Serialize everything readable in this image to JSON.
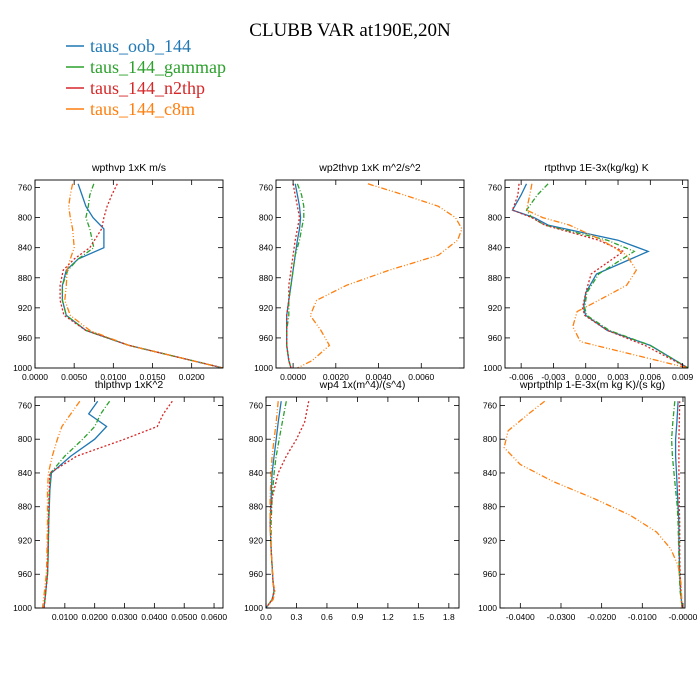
{
  "title": "CLUBB VAR at190E,20N",
  "colors": {
    "taus_oob_144": "#1f77b4",
    "taus_144_gammap": "#2ca02c",
    "taus_144_n2thp": "#d62728",
    "taus_144_c8m": "#ff7f0e"
  },
  "chart_data": [
    {
      "type": "line",
      "title": "wpthvp   1xK m/s",
      "xlim": [
        0,
        0.024
      ],
      "ylim": [
        1000,
        750
      ],
      "y_ticks": [
        760,
        800,
        840,
        880,
        920,
        960,
        1000
      ],
      "x_ticks": [
        0.0,
        0.005,
        0.01,
        0.015,
        0.02
      ],
      "x_tick_labels": [
        "0.0000",
        "0.0050",
        "0.0100",
        "0.0150",
        "0.0200"
      ],
      "series": [
        {
          "name": "taus_oob_144",
          "x": [
            0.0055,
            0.006,
            0.0065,
            0.0074,
            0.0088,
            0.0088,
            0.0055,
            0.004,
            0.0035,
            0.0035,
            0.004,
            0.0065,
            0.012,
            0.024
          ],
          "y": [
            755,
            770,
            785,
            800,
            815,
            840,
            855,
            870,
            890,
            910,
            930,
            950,
            970,
            1000
          ]
        },
        {
          "name": "taus_144_gammap",
          "x": [
            0.0075,
            0.007,
            0.0068,
            0.0065,
            0.007,
            0.0075,
            0.0055,
            0.0042,
            0.0035,
            0.0035,
            0.004,
            0.0065,
            0.012,
            0.024
          ],
          "y": [
            755,
            770,
            785,
            800,
            815,
            840,
            855,
            870,
            890,
            910,
            930,
            950,
            970,
            1000
          ]
        },
        {
          "name": "taus_144_n2thp",
          "x": [
            0.0105,
            0.0098,
            0.0092,
            0.0088,
            0.0085,
            0.007,
            0.005,
            0.0036,
            0.0032,
            0.0032,
            0.0037,
            0.0065,
            0.012,
            0.024
          ],
          "y": [
            755,
            770,
            785,
            800,
            815,
            840,
            855,
            870,
            890,
            910,
            930,
            950,
            970,
            1000
          ]
        },
        {
          "name": "taus_144_c8m",
          "x": [
            0.0048,
            0.0045,
            0.0043,
            0.0045,
            0.0048,
            0.005,
            0.0045,
            0.0041,
            0.004,
            0.0038,
            0.0045,
            0.007,
            0.012,
            0.024
          ],
          "y": [
            755,
            770,
            785,
            800,
            815,
            840,
            855,
            870,
            890,
            910,
            930,
            950,
            970,
            1000
          ]
        }
      ]
    },
    {
      "type": "line",
      "title": "wp2thvp   1xK m^2/s^2",
      "xlim": [
        -0.0008,
        0.008
      ],
      "ylim": [
        1000,
        750
      ],
      "y_ticks": [
        760,
        800,
        840,
        880,
        920,
        960,
        1000
      ],
      "x_ticks": [
        0.0,
        0.002,
        0.004,
        0.006
      ],
      "x_tick_labels": [
        "0.0000",
        "0.0020",
        "0.0040",
        "0.0060"
      ],
      "series": [
        {
          "name": "taus_oob_144",
          "x": [
            0.0001,
            0.0002,
            0.0003,
            0.00035,
            0.0003,
            0.0002,
            0.0001,
            0.0,
            -0.0001,
            -0.0002,
            -0.0003,
            -0.0003,
            -0.0003,
            -0.0002,
            -0.0001
          ],
          "y": [
            755,
            770,
            785,
            800,
            815,
            830,
            850,
            870,
            890,
            910,
            930,
            950,
            970,
            990,
            1000
          ]
        },
        {
          "name": "taus_144_gammap",
          "x": [
            0.0002,
            0.0004,
            0.0005,
            0.0005,
            0.0004,
            0.0003,
            0.0001,
            0.0,
            -0.0001,
            -0.0002,
            -0.0002,
            -0.0003,
            -0.0003,
            -0.0002,
            -0.0001
          ],
          "y": [
            755,
            770,
            785,
            800,
            815,
            830,
            850,
            870,
            890,
            910,
            930,
            950,
            970,
            990,
            1000
          ]
        },
        {
          "name": "taus_144_n2thp",
          "x": [
            0.0,
            0.0001,
            0.0002,
            0.0003,
            0.0002,
            0.0001,
            0.0,
            -0.0001,
            -0.0002,
            -0.0002,
            -0.0003,
            -0.0003,
            -0.0003,
            -0.0002,
            -0.0001
          ],
          "y": [
            755,
            770,
            785,
            800,
            815,
            830,
            850,
            870,
            890,
            910,
            930,
            950,
            970,
            990,
            1000
          ]
        },
        {
          "name": "taus_144_c8m",
          "x": [
            0.0035,
            0.0052,
            0.0068,
            0.0076,
            0.0079,
            0.0077,
            0.0068,
            0.0045,
            0.0025,
            0.0011,
            0.0008,
            0.0013,
            0.0017,
            0.0009,
            0.0002
          ],
          "y": [
            755,
            770,
            785,
            800,
            815,
            830,
            850,
            870,
            890,
            910,
            930,
            950,
            970,
            990,
            1000
          ]
        }
      ]
    },
    {
      "type": "line",
      "title": "rtpthvp   1E-3x(kg/kg) K",
      "xlim": [
        -0.0075,
        0.0095
      ],
      "ylim": [
        1000,
        750
      ],
      "y_ticks": [
        760,
        800,
        840,
        880,
        920,
        960,
        1000
      ],
      "x_ticks": [
        -0.006,
        -0.003,
        0.0,
        0.003,
        0.006,
        0.009
      ],
      "x_tick_labels": [
        "-0.006",
        "-0.003",
        "0.000",
        "0.003",
        "0.006",
        "0.009"
      ],
      "series": [
        {
          "name": "taus_oob_144",
          "x": [
            -0.0055,
            -0.006,
            -0.0068,
            -0.0048,
            -0.0035,
            0.003,
            0.0058,
            0.001,
            0.0,
            -0.0002,
            0.0,
            0.002,
            0.006,
            0.0095
          ],
          "y": [
            755,
            770,
            790,
            800,
            810,
            830,
            845,
            875,
            900,
            920,
            930,
            950,
            970,
            1000
          ]
        },
        {
          "name": "taus_144_gammap",
          "x": [
            -0.0035,
            -0.0045,
            -0.0055,
            -0.005,
            -0.0038,
            0.002,
            0.0045,
            0.0012,
            0.0001,
            -0.0001,
            0.0001,
            0.0022,
            0.006,
            0.0095
          ],
          "y": [
            755,
            770,
            790,
            800,
            810,
            830,
            845,
            875,
            900,
            920,
            930,
            950,
            970,
            1000
          ]
        },
        {
          "name": "taus_144_n2thp",
          "x": [
            -0.0062,
            -0.0063,
            -0.0068,
            -0.005,
            -0.0038,
            0.0012,
            0.0035,
            0.0005,
            0.0,
            -0.0003,
            -0.0001,
            0.002,
            0.0055,
            0.0095
          ],
          "y": [
            755,
            770,
            790,
            800,
            810,
            830,
            845,
            875,
            900,
            920,
            930,
            950,
            970,
            1000
          ]
        },
        {
          "name": "taus_144_c8m",
          "x": [
            -0.005,
            -0.0052,
            -0.0055,
            -0.004,
            -0.0015,
            0.0015,
            0.0038,
            0.0047,
            0.0038,
            0.0012,
            -0.0008,
            -0.0012,
            -0.0005,
            0.0095
          ],
          "y": [
            755,
            770,
            790,
            800,
            810,
            830,
            850,
            870,
            890,
            910,
            925,
            945,
            965,
            1000
          ]
        }
      ]
    },
    {
      "type": "line",
      "title": "thlpthvp   1xK^2",
      "xlim": [
        0.0,
        0.063
      ],
      "ylim": [
        1000,
        750
      ],
      "y_ticks": [
        760,
        800,
        840,
        880,
        920,
        960,
        1000
      ],
      "x_ticks": [
        0.01,
        0.02,
        0.03,
        0.04,
        0.05,
        0.06
      ],
      "x_tick_labels": [
        "0.0100",
        "0.0200",
        "0.0300",
        "0.0400",
        "0.0500",
        "0.0600"
      ],
      "series": [
        {
          "name": "taus_oob_144",
          "x": [
            0.021,
            0.018,
            0.024,
            0.02,
            0.012,
            0.0055,
            0.005,
            0.0048,
            0.0046,
            0.0045,
            0.0044,
            0.0042,
            0.0035,
            0.003
          ],
          "y": [
            755,
            770,
            785,
            800,
            820,
            840,
            860,
            880,
            900,
            920,
            940,
            960,
            985,
            1000
          ]
        },
        {
          "name": "taus_144_gammap",
          "x": [
            0.025,
            0.022,
            0.02,
            0.016,
            0.01,
            0.0052,
            0.0049,
            0.0047,
            0.0046,
            0.0045,
            0.0044,
            0.0042,
            0.0035,
            0.003
          ],
          "y": [
            755,
            770,
            785,
            800,
            820,
            840,
            860,
            880,
            900,
            920,
            940,
            960,
            985,
            1000
          ]
        },
        {
          "name": "taus_144_n2thp",
          "x": [
            0.046,
            0.043,
            0.041,
            0.03,
            0.014,
            0.005,
            0.0048,
            0.0046,
            0.0045,
            0.0044,
            0.0043,
            0.0042,
            0.0035,
            0.003
          ],
          "y": [
            755,
            770,
            785,
            800,
            820,
            840,
            860,
            880,
            900,
            920,
            940,
            960,
            985,
            1000
          ]
        },
        {
          "name": "taus_144_c8m",
          "x": [
            0.015,
            0.012,
            0.009,
            0.0075,
            0.0058,
            0.0045,
            0.0042,
            0.0042,
            0.0042,
            0.0041,
            0.004,
            0.0038,
            0.003,
            0.0025
          ],
          "y": [
            755,
            770,
            785,
            800,
            820,
            840,
            860,
            880,
            900,
            920,
            940,
            960,
            985,
            1000
          ]
        }
      ]
    },
    {
      "type": "line",
      "title": "wp4   1x(m^4)/(s^4)",
      "xlim": [
        0.0,
        1.9
      ],
      "ylim": [
        1000,
        750
      ],
      "y_ticks": [
        760,
        800,
        840,
        880,
        920,
        960,
        1000
      ],
      "x_ticks": [
        0.0,
        0.3,
        0.6,
        0.9,
        1.2,
        1.5,
        1.8
      ],
      "x_tick_labels": [
        "0.0",
        "0.3",
        "0.6",
        "0.9",
        "1.2",
        "1.5",
        "1.8"
      ],
      "series": [
        {
          "name": "taus_oob_144",
          "x": [
            0.15,
            0.12,
            0.1,
            0.08,
            0.06,
            0.05,
            0.04,
            0.05,
            0.06,
            0.07,
            0.08,
            0.06,
            0.0
          ],
          "y": [
            755,
            780,
            800,
            820,
            840,
            870,
            900,
            930,
            950,
            970,
            980,
            990,
            1000
          ]
        },
        {
          "name": "taus_144_gammap",
          "x": [
            0.2,
            0.16,
            0.13,
            0.1,
            0.08,
            0.06,
            0.05,
            0.05,
            0.06,
            0.07,
            0.08,
            0.06,
            0.0
          ],
          "y": [
            755,
            780,
            800,
            820,
            840,
            870,
            900,
            930,
            950,
            970,
            980,
            990,
            1000
          ]
        },
        {
          "name": "taus_144_n2thp",
          "x": [
            0.42,
            0.38,
            0.3,
            0.2,
            0.12,
            0.06,
            0.04,
            0.05,
            0.06,
            0.07,
            0.08,
            0.06,
            0.0
          ],
          "y": [
            755,
            780,
            800,
            820,
            840,
            870,
            900,
            930,
            950,
            970,
            980,
            990,
            1000
          ]
        },
        {
          "name": "taus_144_c8m",
          "x": [
            0.12,
            0.1,
            0.08,
            0.06,
            0.05,
            0.04,
            0.04,
            0.05,
            0.06,
            0.07,
            0.09,
            0.07,
            0.0
          ],
          "y": [
            755,
            780,
            800,
            820,
            840,
            870,
            900,
            930,
            950,
            970,
            980,
            990,
            1000
          ]
        }
      ]
    },
    {
      "type": "line",
      "title": "wprtpthlp   1-E-3x(m kg K)/(s kg)",
      "xlim": [
        -0.045,
        0.0005
      ],
      "ylim": [
        1000,
        750
      ],
      "y_ticks": [
        760,
        800,
        840,
        880,
        920,
        960,
        1000
      ],
      "x_ticks": [
        -0.04,
        -0.03,
        -0.02,
        -0.01,
        0.0
      ],
      "x_tick_labels": [
        "-0.0400",
        "-0.0300",
        "-0.0200",
        "-0.0100",
        "-0.0000"
      ],
      "series": [
        {
          "name": "taus_oob_144",
          "x": [
            -0.0012,
            -0.0015,
            -0.0018,
            -0.0018,
            -0.0016,
            -0.0014,
            -0.0012,
            -0.001,
            -0.001,
            -0.0009,
            -0.0008,
            -0.0006,
            -0.0002
          ],
          "y": [
            755,
            780,
            800,
            820,
            840,
            860,
            880,
            900,
            920,
            940,
            960,
            980,
            1000
          ]
        },
        {
          "name": "taus_144_gammap",
          "x": [
            -0.002,
            -0.0025,
            -0.0028,
            -0.0026,
            -0.0022,
            -0.0018,
            -0.0014,
            -0.0012,
            -0.0011,
            -0.001,
            -0.0009,
            -0.0007,
            -0.0002
          ],
          "y": [
            755,
            780,
            800,
            820,
            840,
            860,
            880,
            900,
            920,
            940,
            960,
            980,
            1000
          ]
        },
        {
          "name": "taus_144_n2thp",
          "x": [
            -0.0008,
            -0.0009,
            -0.001,
            -0.001,
            -0.001,
            -0.0009,
            -0.0009,
            -0.0008,
            -0.0008,
            -0.0008,
            -0.0007,
            -0.0005,
            -0.0002
          ],
          "y": [
            755,
            780,
            800,
            820,
            840,
            860,
            880,
            900,
            920,
            940,
            960,
            980,
            1000
          ]
        },
        {
          "name": "taus_144_c8m",
          "x": [
            -0.034,
            -0.038,
            -0.043,
            -0.044,
            -0.04,
            -0.032,
            -0.022,
            -0.013,
            -0.0065,
            -0.003,
            -0.0012,
            -0.0005,
            -0.0002
          ],
          "y": [
            755,
            770,
            790,
            810,
            830,
            850,
            870,
            890,
            910,
            930,
            950,
            970,
            1000
          ]
        }
      ]
    }
  ]
}
